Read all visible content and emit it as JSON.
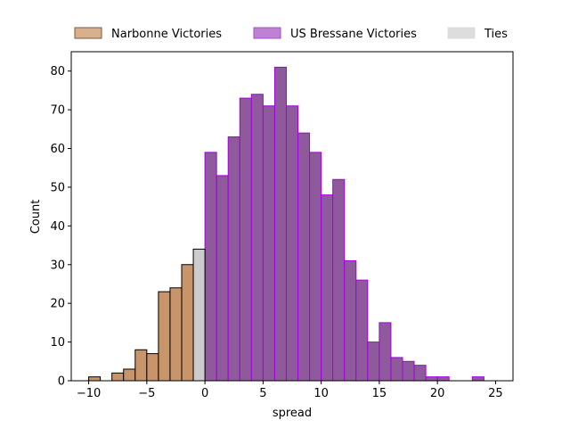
{
  "chart_data": {
    "type": "bar",
    "xlabel": "spread",
    "ylabel": "Count",
    "xlim": [
      -11.5,
      26.5
    ],
    "ylim": [
      0,
      85
    ],
    "xticks": [
      -10,
      -5,
      0,
      5,
      10,
      15,
      20,
      25
    ],
    "xtick_labels": [
      "−10",
      "−5",
      "0",
      "5",
      "10",
      "15",
      "20",
      "25"
    ],
    "yticks": [
      0,
      10,
      20,
      30,
      40,
      50,
      60,
      70,
      80
    ],
    "bin_width": 1,
    "legend_position": "top",
    "series": [
      {
        "name": "Narbonne Victories",
        "color": "#c8956a",
        "edge": "#000000",
        "bins": [
          {
            "x": -9.5,
            "count": 1
          },
          {
            "x": -7.5,
            "count": 2
          },
          {
            "x": -6.5,
            "count": 3
          },
          {
            "x": -5.5,
            "count": 8
          },
          {
            "x": -4.5,
            "count": 7
          },
          {
            "x": -3.5,
            "count": 23
          },
          {
            "x": -2.5,
            "count": 24
          },
          {
            "x": -1.5,
            "count": 30
          }
        ]
      },
      {
        "name": "US Bressane Victories",
        "color": "#8e5a9b",
        "edge": "#a100e0",
        "bins": [
          {
            "x": 0.5,
            "count": 59
          },
          {
            "x": 1.5,
            "count": 53
          },
          {
            "x": 2.5,
            "count": 63
          },
          {
            "x": 3.5,
            "count": 73
          },
          {
            "x": 4.5,
            "count": 74
          },
          {
            "x": 5.5,
            "count": 71
          },
          {
            "x": 6.5,
            "count": 81
          },
          {
            "x": 7.5,
            "count": 71
          },
          {
            "x": 8.5,
            "count": 64
          },
          {
            "x": 9.5,
            "count": 59
          },
          {
            "x": 10.5,
            "count": 48
          },
          {
            "x": 11.5,
            "count": 52
          },
          {
            "x": 12.5,
            "count": 31
          },
          {
            "x": 13.5,
            "count": 26
          },
          {
            "x": 14.5,
            "count": 10
          },
          {
            "x": 15.5,
            "count": 15
          },
          {
            "x": 16.5,
            "count": 6
          },
          {
            "x": 17.5,
            "count": 5
          },
          {
            "x": 18.5,
            "count": 4
          },
          {
            "x": 19.5,
            "count": 1
          },
          {
            "x": 20.5,
            "count": 1
          },
          {
            "x": 23.5,
            "count": 1
          }
        ]
      },
      {
        "name": "Ties",
        "color": "#cccccc",
        "edge": "#000000",
        "bins": [
          {
            "x": -0.5,
            "count": 34
          }
        ]
      }
    ],
    "legend": [
      {
        "name": "Narbonne Victories",
        "fill": "#d9b08c",
        "stroke": "#7a5a45"
      },
      {
        "name": "US Bressane Victories",
        "fill": "#bf80d6",
        "stroke": "#a34fc8"
      },
      {
        "name": "Ties",
        "fill": "#dddddd",
        "stroke": "#dddddd"
      }
    ]
  }
}
